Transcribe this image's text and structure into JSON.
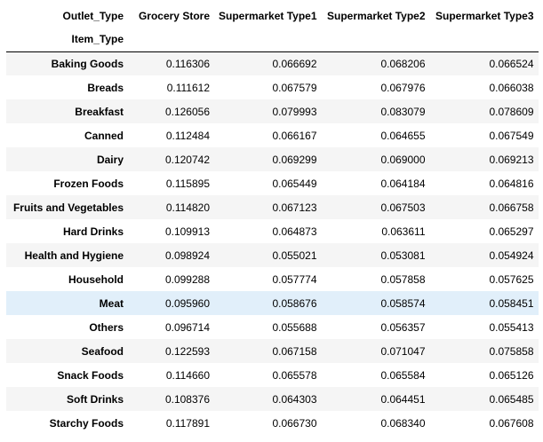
{
  "table": {
    "column_index_name": "Outlet_Type",
    "row_index_name": "Item_Type",
    "columns": [
      "Grocery Store",
      "Supermarket Type1",
      "Supermarket Type2",
      "Supermarket Type3"
    ],
    "rows": [
      {
        "label": "Baking Goods",
        "values": [
          "0.116306",
          "0.066692",
          "0.068206",
          "0.066524"
        ]
      },
      {
        "label": "Breads",
        "values": [
          "0.111612",
          "0.067579",
          "0.067976",
          "0.066038"
        ]
      },
      {
        "label": "Breakfast",
        "values": [
          "0.126056",
          "0.079993",
          "0.083079",
          "0.078609"
        ]
      },
      {
        "label": "Canned",
        "values": [
          "0.112484",
          "0.066167",
          "0.064655",
          "0.067549"
        ]
      },
      {
        "label": "Dairy",
        "values": [
          "0.120742",
          "0.069299",
          "0.069000",
          "0.069213"
        ]
      },
      {
        "label": "Frozen Foods",
        "values": [
          "0.115895",
          "0.065449",
          "0.064184",
          "0.064816"
        ]
      },
      {
        "label": "Fruits and Vegetables",
        "values": [
          "0.114820",
          "0.067123",
          "0.067503",
          "0.066758"
        ]
      },
      {
        "label": "Hard Drinks",
        "values": [
          "0.109913",
          "0.064873",
          "0.063611",
          "0.065297"
        ]
      },
      {
        "label": "Health and Hygiene",
        "values": [
          "0.098924",
          "0.055021",
          "0.053081",
          "0.054924"
        ]
      },
      {
        "label": "Household",
        "values": [
          "0.099288",
          "0.057774",
          "0.057858",
          "0.057625"
        ]
      },
      {
        "label": "Meat",
        "values": [
          "0.095960",
          "0.058676",
          "0.058574",
          "0.058451"
        ]
      },
      {
        "label": "Others",
        "values": [
          "0.096714",
          "0.055688",
          "0.056357",
          "0.055413"
        ]
      },
      {
        "label": "Seafood",
        "values": [
          "0.122593",
          "0.067158",
          "0.071047",
          "0.075858"
        ]
      },
      {
        "label": "Snack Foods",
        "values": [
          "0.114660",
          "0.065578",
          "0.065584",
          "0.065126"
        ]
      },
      {
        "label": "Soft Drinks",
        "values": [
          "0.108376",
          "0.064303",
          "0.064451",
          "0.065485"
        ]
      },
      {
        "label": "Starchy Foods",
        "values": [
          "0.117891",
          "0.066730",
          "0.068340",
          "0.067608"
        ]
      }
    ],
    "highlighted_row": "Meat",
    "colors": {
      "odd_row": "#f5f5f5",
      "even_row": "#ffffff",
      "hover_row": "#e1effa"
    }
  }
}
